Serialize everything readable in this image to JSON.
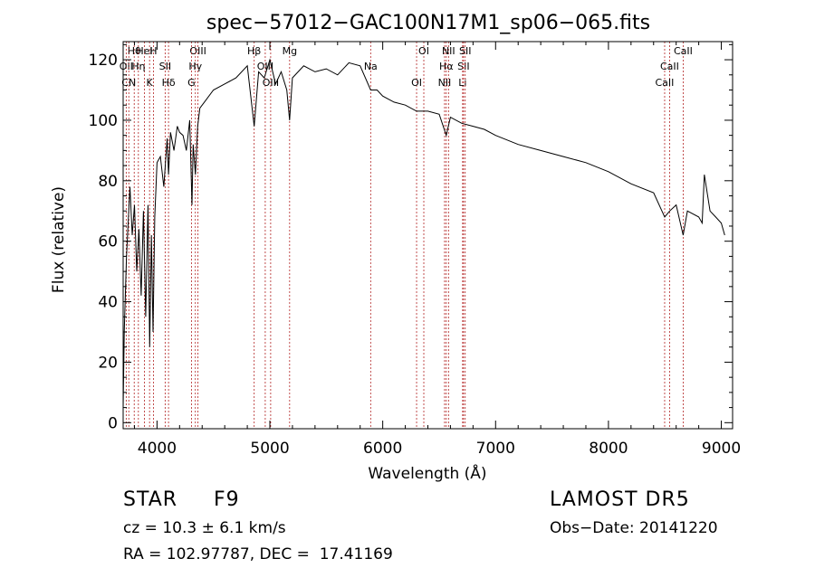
{
  "chart_data": {
    "type": "line",
    "title": "spec−57012−GAC100N17M1_sp06−065.fits",
    "xlabel": "Wavelength (Å)",
    "ylabel": "Flux (relative)",
    "xlim": [
      3700,
      9100
    ],
    "ylim": [
      -2,
      126
    ],
    "x_ticks": [
      4000,
      5000,
      6000,
      7000,
      8000,
      9000
    ],
    "y_ticks": [
      0,
      20,
      40,
      60,
      80,
      100,
      120
    ],
    "grid": false,
    "legend": "none",
    "line_color": "#000000",
    "marker_color": "#b22222",
    "series": [
      {
        "x": [
          3700,
          3710,
          3730,
          3760,
          3780,
          3800,
          3820,
          3840,
          3860,
          3880,
          3900,
          3920,
          3935,
          3950,
          3965,
          3980,
          4000,
          4030,
          4060,
          4090,
          4102,
          4120,
          4150,
          4180,
          4200,
          4230,
          4260,
          4290,
          4310,
          4320,
          4340,
          4360,
          4380,
          4420,
          4500,
          4600,
          4700,
          4800,
          4861,
          4900,
          4950,
          5000,
          5050,
          5100,
          5150,
          5175,
          5200,
          5300,
          5400,
          5500,
          5600,
          5700,
          5800,
          5893,
          5950,
          6000,
          6100,
          6200,
          6300,
          6400,
          6500,
          6563,
          6600,
          6700,
          6800,
          6900,
          7000,
          7200,
          7400,
          7600,
          7800,
          8000,
          8200,
          8400,
          8498,
          8542,
          8600,
          8662,
          8700,
          8800,
          8830,
          8850,
          8900,
          8950,
          9000,
          9030
        ],
        "y": [
          5,
          30,
          55,
          78,
          62,
          72,
          50,
          64,
          42,
          70,
          35,
          72,
          25,
          62,
          30,
          68,
          86,
          88,
          78,
          94,
          82,
          96,
          90,
          98,
          96,
          95,
          90,
          100,
          72,
          92,
          82,
          98,
          104,
          106,
          110,
          112,
          114,
          118,
          98,
          116,
          114,
          120,
          112,
          116,
          110,
          100,
          114,
          118,
          116,
          117,
          115,
          119,
          118,
          110,
          110,
          108,
          106,
          105,
          103,
          103,
          102,
          95,
          101,
          99,
          98,
          97,
          95,
          92,
          90,
          88,
          86,
          83,
          79,
          76,
          68,
          70,
          72,
          62,
          70,
          68,
          66,
          82,
          70,
          68,
          66,
          62
        ]
      }
    ],
    "line_markers": [
      {
        "label": "Hθ",
        "x": 3798
      },
      {
        "label": "OII",
        "x": 3727
      },
      {
        "label": "CN",
        "x": 3750
      },
      {
        "label": "HeI",
        "x": 3889
      },
      {
        "label": "Hη",
        "x": 3835
      },
      {
        "label": "K",
        "x": 3934
      },
      {
        "label": "H",
        "x": 3968
      },
      {
        "label": "SII",
        "x": 4072
      },
      {
        "label": "Hδ",
        "x": 4102
      },
      {
        "label": "OIII",
        "x": 4363
      },
      {
        "label": "Hγ",
        "x": 4340
      },
      {
        "label": "G",
        "x": 4305
      },
      {
        "label": "Hβ",
        "x": 4861
      },
      {
        "label": "OIII",
        "x": 4959
      },
      {
        "label": "OIII",
        "x": 5007
      },
      {
        "label": "Mg",
        "x": 5175
      },
      {
        "label": "Na",
        "x": 5893
      },
      {
        "label": "OI",
        "x": 6300
      },
      {
        "label": "OI",
        "x": 6364
      },
      {
        "label": "Hα",
        "x": 6563
      },
      {
        "label": "NII",
        "x": 6548
      },
      {
        "label": "NII",
        "x": 6583
      },
      {
        "label": "SII",
        "x": 6716
      },
      {
        "label": "Li",
        "x": 6708
      },
      {
        "label": "SII",
        "x": 6731
      },
      {
        "label": "CaII",
        "x": 8542
      },
      {
        "label": "CaII",
        "x": 8498
      },
      {
        "label": "CaII",
        "x": 8662
      }
    ]
  },
  "info": {
    "object_class": "STAR",
    "subclass": "F9",
    "survey": "LAMOST DR5",
    "cz": "cz = 10.3 ± 6.1 km/s",
    "obs_date": "Obs−Date: 20141220",
    "coords": "RA = 102.97787, DEC =  17.41169"
  }
}
